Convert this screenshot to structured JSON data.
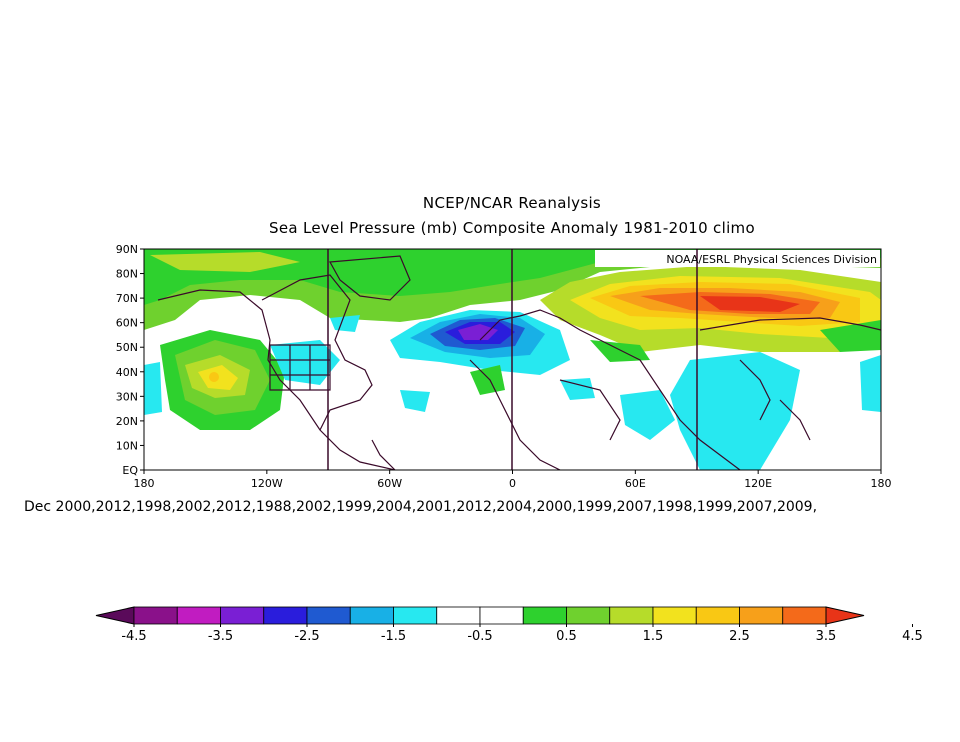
{
  "title_line1": "NCEP/NCAR Reanalysis",
  "title_line2": "Sea Level Pressure (mb) Composite Anomaly 1981-2010 climo",
  "credit": "NOAA/ESRL Physical Sciences Division",
  "lat_labels": [
    "90N",
    "80N",
    "70N",
    "60N",
    "50N",
    "40N",
    "30N",
    "20N",
    "10N",
    "EQ"
  ],
  "lon_labels": [
    "180",
    "120W",
    "60W",
    "0",
    "60E",
    "120E",
    "180"
  ],
  "date_text": "Dec 2000,2012,1998,2002,2012,1988,2002,1999,2004,2001,2012,2004,2000,1999,2007,1998,1999,2007,2009,",
  "colorbar": {
    "colors": [
      "#5a0a5a",
      "#8a118a",
      "#c11cc1",
      "#7a1fd4",
      "#2a1ddc",
      "#1f5ad1",
      "#18b0e6",
      "#27e8f0",
      "#ffffff",
      "#ffffff",
      "#2ed12e",
      "#6fd12e",
      "#b6dc2a",
      "#f2e21e",
      "#f9c814",
      "#f7a01a",
      "#f46a1a",
      "#e83418"
    ],
    "labels": [
      "-4.5",
      "-3.5",
      "-2.5",
      "-1.5",
      "-0.5",
      "0.5",
      "1.5",
      "2.5",
      "3.5",
      "4.5"
    ]
  }
}
